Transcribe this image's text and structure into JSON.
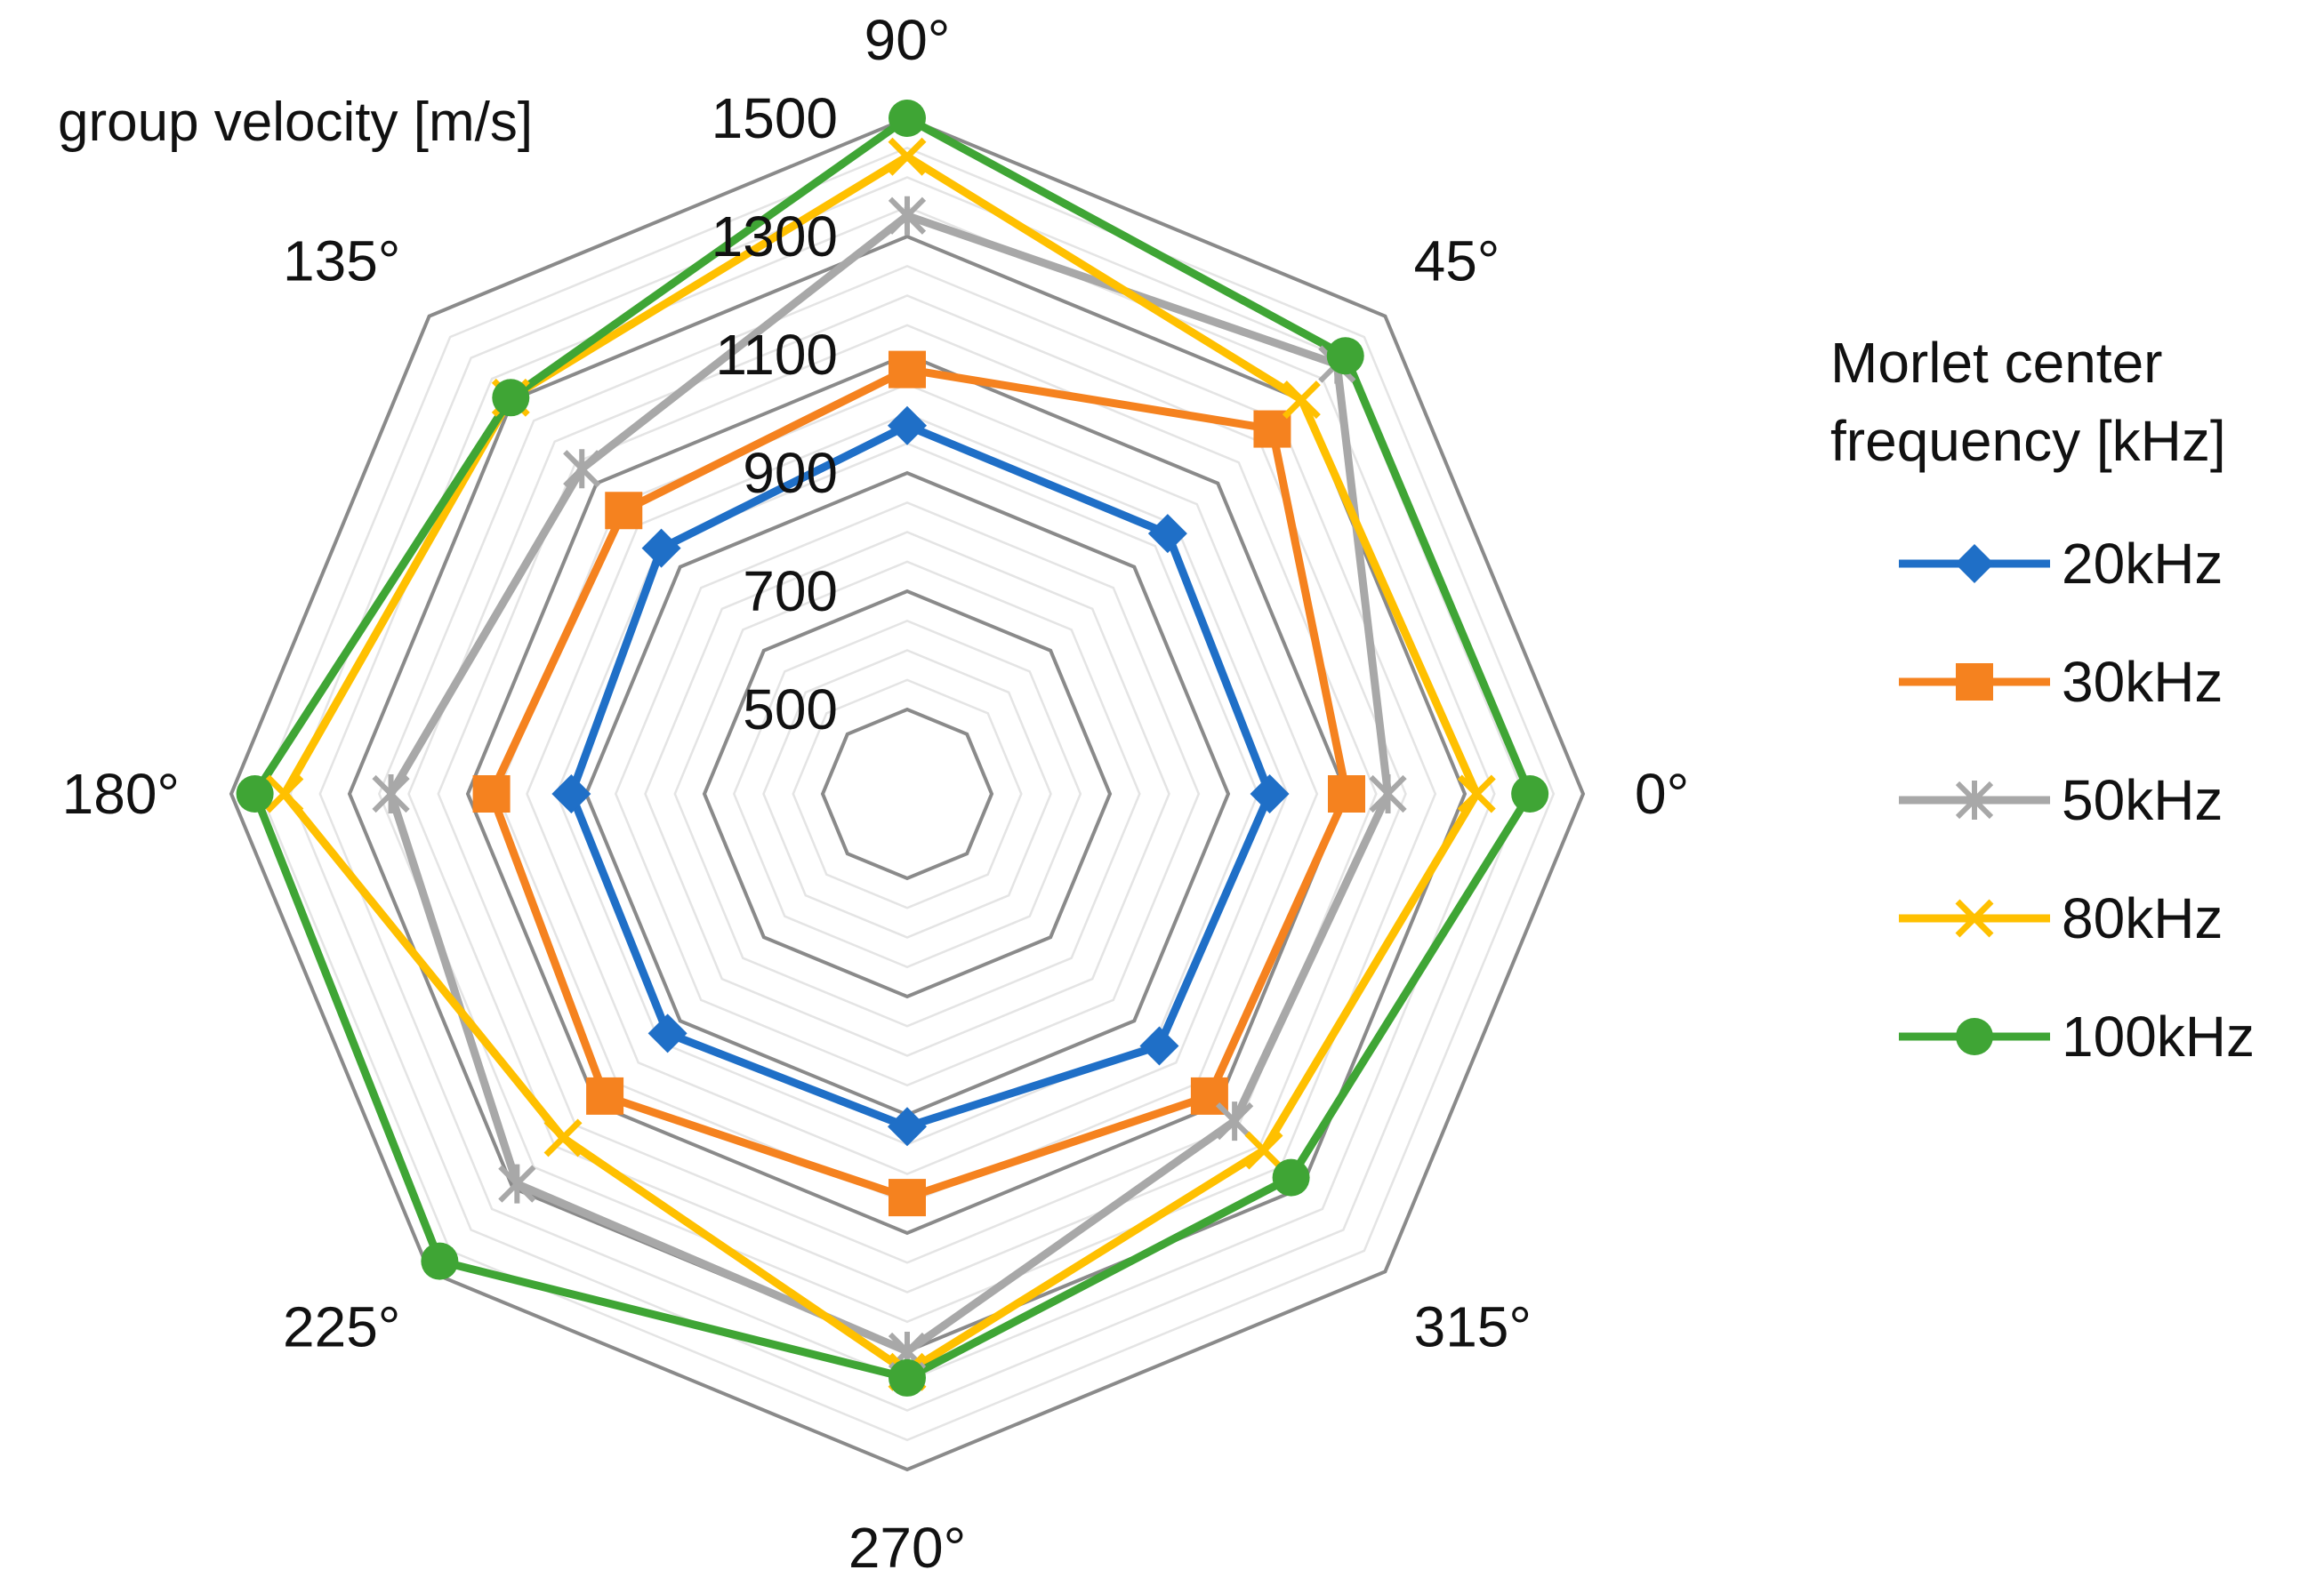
{
  "chart_data": {
    "type": "radar",
    "title": "",
    "radial_axis_title": "group velocity [m/s]",
    "radial_range": [
      500,
      1500
    ],
    "radial_major_ticks": [
      500,
      700,
      900,
      1100,
      1300,
      1500
    ],
    "radial_tick_labels": [
      "500",
      "700",
      "900",
      "1100",
      "1300",
      "1500"
    ],
    "radial_minor_step": 50,
    "angles": [
      0,
      45,
      90,
      135,
      180,
      225,
      270,
      315
    ],
    "angle_labels": [
      "0°",
      "45°",
      "90°",
      "135°",
      "180°",
      "225°",
      "270°",
      "315°"
    ],
    "legend_title": [
      "Morlet center",
      "frequency [kHz]"
    ],
    "legend_position": "right",
    "series": [
      {
        "name": "20kHz",
        "color": "#1f6fc7",
        "marker": "diamond",
        "values": [
          970,
          980,
          980,
          945,
          925,
          930,
          920,
          960
        ]
      },
      {
        "name": "30kHz",
        "color": "#f5821f",
        "marker": "square",
        "values": [
          1100,
          1230,
          1075,
          1035,
          1060,
          1080,
          1040,
          1080
        ]
      },
      {
        "name": "50kHz",
        "color": "#a8a8a8",
        "marker": "star",
        "values": [
          1170,
          1385,
          1335,
          1135,
          1230,
          1290,
          1300,
          1140
        ]
      },
      {
        "name": "80kHz",
        "color": "#ffc000",
        "marker": "x",
        "values": [
          1320,
          1300,
          1435,
          1305,
          1410,
          1180,
          1335,
          1210
        ]
      },
      {
        "name": "100kHz",
        "color": "#3fa535",
        "marker": "circle",
        "values": [
          1410,
          1405,
          1500,
          1305,
          1460,
          1475,
          1345,
          1275
        ]
      }
    ]
  }
}
